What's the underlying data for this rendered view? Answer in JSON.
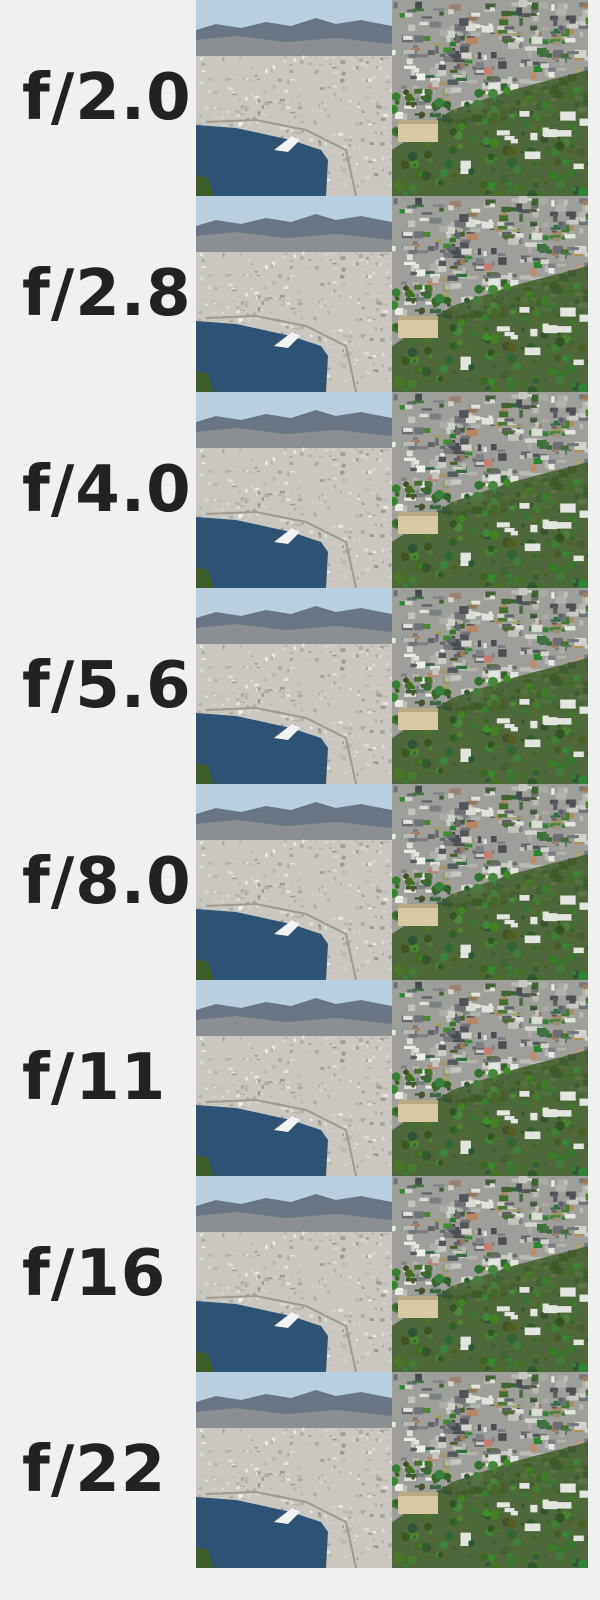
{
  "rows": [
    {
      "aperture": "f/2.0"
    },
    {
      "aperture": "f/2.8"
    },
    {
      "aperture": "f/4.0"
    },
    {
      "aperture": "f/5.6"
    },
    {
      "aperture": "f/8.0"
    },
    {
      "aperture": "f/11"
    },
    {
      "aperture": "f/16"
    },
    {
      "aperture": "f/22"
    }
  ],
  "colors": {
    "background": "#f0f0f0",
    "label": "#222222",
    "sky": "#b9cfe0",
    "mountains": "#6b7685",
    "city": "#c9c7c0",
    "water": "#2d5273",
    "foliage": "#3f5d2a"
  }
}
